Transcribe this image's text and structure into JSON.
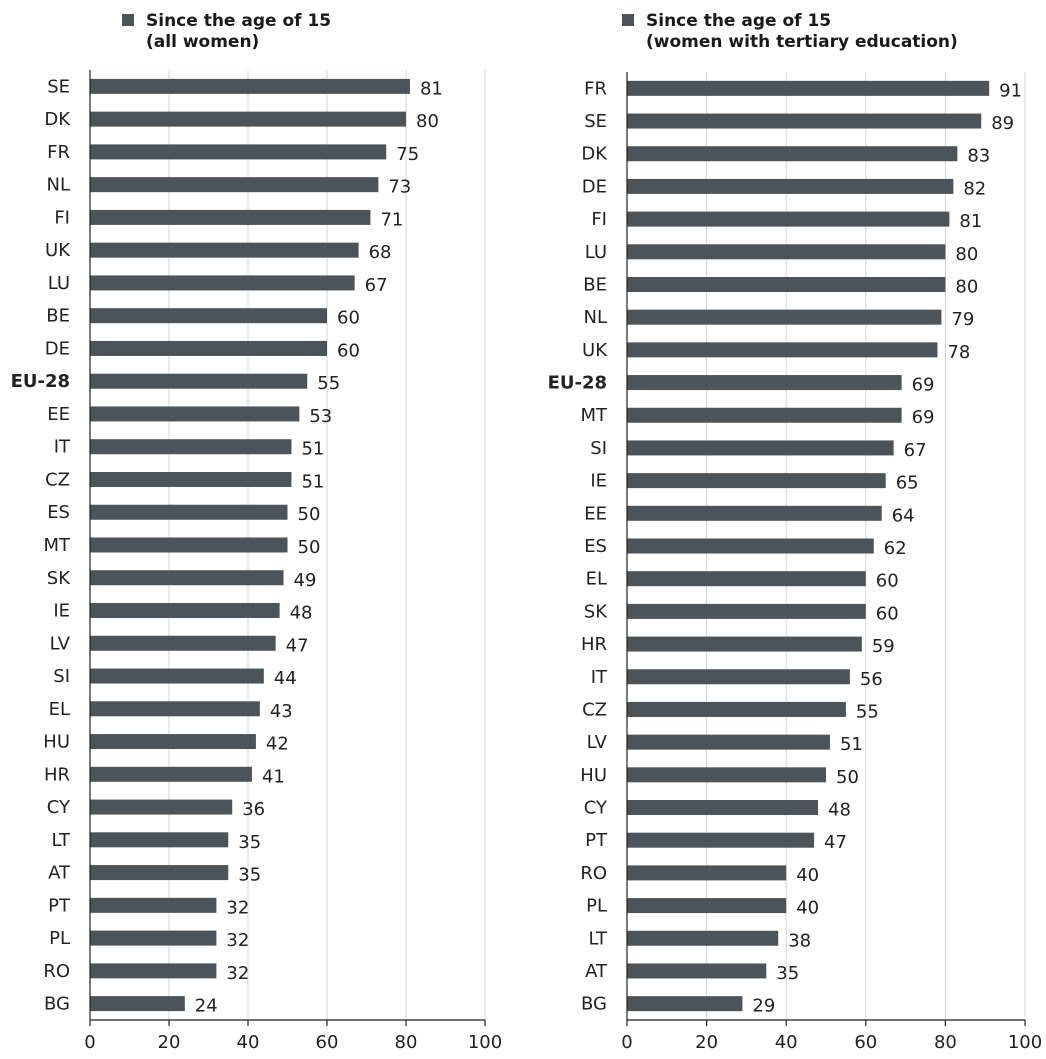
{
  "chart_data": [
    {
      "type": "bar",
      "orientation": "horizontal",
      "legend": "Since the age of 15",
      "legend_line2": "(all women)",
      "legend_placement": "top",
      "categories": [
        "SE",
        "DK",
        "FR",
        "NL",
        "FI",
        "UK",
        "LU",
        "BE",
        "DE",
        "EU-28",
        "EE",
        "IT",
        "CZ",
        "ES",
        "MT",
        "SK",
        "IE",
        "LV",
        "SI",
        "EL",
        "HU",
        "HR",
        "CY",
        "LT",
        "AT",
        "PT",
        "PL",
        "RO",
        "BG"
      ],
      "values": [
        81,
        80,
        75,
        73,
        71,
        68,
        67,
        60,
        60,
        55,
        53,
        51,
        51,
        50,
        50,
        49,
        48,
        47,
        44,
        43,
        42,
        41,
        36,
        35,
        35,
        32,
        32,
        32,
        24
      ],
      "highlight_category": "EU-28",
      "xlim": [
        0,
        100
      ],
      "xticks": [
        0,
        20,
        40,
        60,
        80,
        100
      ],
      "grid": true,
      "bar_color": "#4b535b"
    },
    {
      "type": "bar",
      "orientation": "horizontal",
      "legend": "Since the age of 15",
      "legend_line2": "(women with tertiary education)",
      "legend_placement": "top",
      "categories": [
        "FR",
        "SE",
        "DK",
        "DE",
        "FI",
        "LU",
        "BE",
        "NL",
        "UK",
        "EU-28",
        "MT",
        "SI",
        "IE",
        "EE",
        "ES",
        "EL",
        "SK",
        "HR",
        "IT",
        "CZ",
        "LV",
        "HU",
        "CY",
        "PT",
        "RO",
        "PL",
        "LT",
        "AT",
        "BG"
      ],
      "values": [
        91,
        89,
        83,
        82,
        81,
        80,
        80,
        79,
        78,
        69,
        69,
        67,
        65,
        64,
        62,
        60,
        60,
        59,
        56,
        55,
        51,
        50,
        48,
        47,
        40,
        40,
        38,
        35,
        29
      ],
      "highlight_category": "EU-28",
      "xlim": [
        0,
        100
      ],
      "xticks": [
        0,
        20,
        40,
        60,
        80,
        100
      ],
      "grid": true,
      "bar_color": "#4b535b"
    }
  ]
}
